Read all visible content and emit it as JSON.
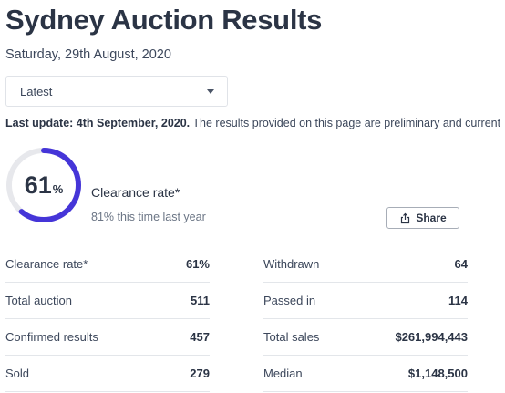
{
  "header": {
    "title": "Sydney Auction Results",
    "date": "Saturday, 29th August, 2020"
  },
  "filter": {
    "selected": "Latest"
  },
  "update": {
    "bold": "Last update: 4th September, 2020.",
    "text": " The results provided on this page are preliminary and current"
  },
  "gauge": {
    "value": "61",
    "unit": "%",
    "fraction": 0.61,
    "color": "#4535d8",
    "track_color": "#e7e8ec",
    "label": "Clearance rate*",
    "sub": "81% this time last year"
  },
  "share": {
    "label": "Share",
    "icon": "share-icon"
  },
  "stats_left": [
    {
      "label": "Clearance rate*",
      "value": "61%"
    },
    {
      "label": "Total auction",
      "value": "511"
    },
    {
      "label": "Confirmed results",
      "value": "457"
    },
    {
      "label": "Sold",
      "value": "279"
    }
  ],
  "stats_right": [
    {
      "label": "Withdrawn",
      "value": "64"
    },
    {
      "label": "Passed in",
      "value": "114"
    },
    {
      "label": "Total sales",
      "value": "$261,994,443"
    },
    {
      "label": "Median",
      "value": "$1,148,500"
    }
  ]
}
